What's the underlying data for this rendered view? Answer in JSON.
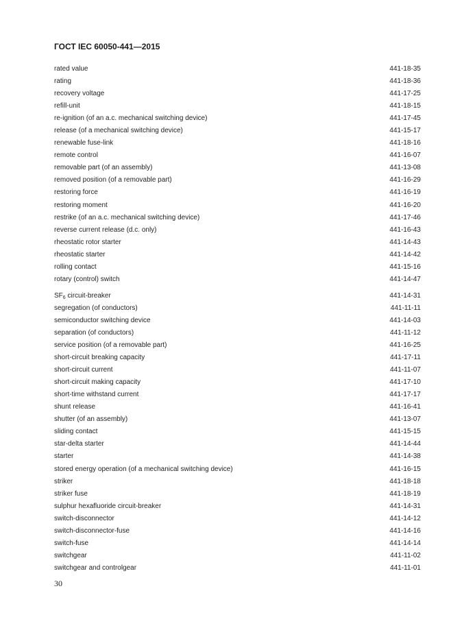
{
  "header": {
    "title": "ГОСТ IEC 60050-441—2015"
  },
  "entries": [
    {
      "term": "rated value",
      "code": "441-18-35"
    },
    {
      "term": "rating",
      "code": "441-18-36"
    },
    {
      "term": "recovery voltage",
      "code": "441-17-25"
    },
    {
      "term": "refill-unit",
      "code": "441-18-15"
    },
    {
      "term": "re-ignition (of an a.c. mechanical switching device)",
      "code": "441-17-45"
    },
    {
      "term": "release (of a mechanical switching device)",
      "code": "441-15-17"
    },
    {
      "term": "renewable fuse-link",
      "code": "441-18-16"
    },
    {
      "term": "remote control",
      "code": "441-16-07"
    },
    {
      "term": "removable part (of an assembly)",
      "code": "441-13-08"
    },
    {
      "term": "removed position (of a removable part)",
      "code": "441-16-29"
    },
    {
      "term": "restoring force",
      "code": "441-16-19"
    },
    {
      "term": "restoring moment",
      "code": "441-16-20"
    },
    {
      "term": "restrike (of an a.c. mechanical switching device)",
      "code": "441-17-46"
    },
    {
      "term": "reverse current release (d.c. only)",
      "code": "441-16-43"
    },
    {
      "term": "rheostatic rotor starter",
      "code": "441-14-43"
    },
    {
      "term": "rheostatic starter",
      "code": "441-14-42"
    },
    {
      "term": "rolling contact",
      "code": "441-15-16"
    },
    {
      "term": "rotary (control) switch",
      "code": "441-14-47"
    },
    {
      "term": "SF",
      "sub": "6",
      "term_rest": " circuit-breaker",
      "code": "441-14-31"
    },
    {
      "term": "segregation (of conductors)",
      "code": "441-11-11"
    },
    {
      "term": "semiconductor switching device",
      "code": "441-14-03"
    },
    {
      "term": "separation (of conductors)",
      "code": "441-11-12"
    },
    {
      "term": "service position (of a removable part)",
      "code": "441-16-25"
    },
    {
      "term": "short-circuit breaking capacity",
      "code": "441-17-11"
    },
    {
      "term": "short-circuit current",
      "code": "441-11-07"
    },
    {
      "term": "short-circuit making capacity",
      "code": "441-17-10"
    },
    {
      "term": "short-time withstand current",
      "code": "441-17-17"
    },
    {
      "term": "shunt release",
      "code": "441-16-41"
    },
    {
      "term": "shutter (of an assembly)",
      "code": "441-13-07"
    },
    {
      "term": "sliding contact",
      "code": "441-15-15"
    },
    {
      "term": "star-delta starter",
      "code": "441-14-44"
    },
    {
      "term": "starter",
      "code": "441-14-38"
    },
    {
      "term": "stored energy operation (of a mechanical switching device)",
      "code": "441-16-15"
    },
    {
      "term": "striker",
      "code": "441-18-18"
    },
    {
      "term": "striker fuse",
      "code": "441-18-19"
    },
    {
      "term": "sulphur hexafluoride circuit-breaker",
      "code": "441-14-31"
    },
    {
      "term": "switch-disconnector",
      "code": "441-14-12"
    },
    {
      "term": "switch-disconnector-fuse",
      "code": "441-14-16"
    },
    {
      "term": "switch-fuse",
      "code": "441-14-14"
    },
    {
      "term": "switchgear",
      "code": "441-11-02"
    },
    {
      "term": "switchgear and controlgear",
      "code": "441-11-01"
    }
  ],
  "footer": {
    "page_number": "30"
  }
}
